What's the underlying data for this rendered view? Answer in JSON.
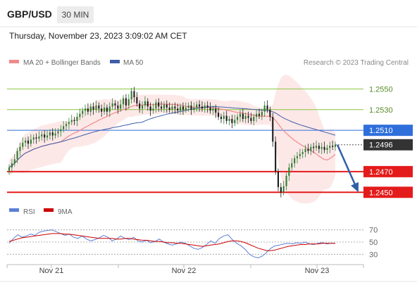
{
  "header": {
    "symbol": "GBP/USD",
    "timeframe": "30 MIN",
    "timestamp": "Thursday, November 23, 2023 3:09:02 AM CET"
  },
  "legend": {
    "ma20_label": "MA 20 + Bollinger Bands",
    "ma50_label": "MA 50",
    "credit": "Research © 2023 Trading Central",
    "rsi_label": "RSI",
    "ma9_label": "9MA"
  },
  "colors": {
    "ma20": "#f08a8a",
    "ma50": "#3d5ea8",
    "band_fill": "#fde4e4",
    "candle_up": "#2e7d32",
    "candle_down": "#1b1b1b",
    "resistance": "#8cc63f",
    "pivot": "#2f6fdb",
    "support": "#e41b1b",
    "current": "#333333",
    "forecast_arrow": "#2f5fa8",
    "rsi": "#5b7fd6",
    "rsi_ma": "#cc0000"
  },
  "chart_data": [
    {
      "type": "candlestick",
      "title": "GBP/USD",
      "timeframe": "30 MIN",
      "ylim": [
        1.2442,
        1.2568
      ],
      "x_ticks": [
        "Nov 21",
        "Nov 22",
        "Nov 23"
      ],
      "levels": [
        {
          "label": "1.2550",
          "value": 1.255,
          "kind": "resistance"
        },
        {
          "label": "1.2530",
          "value": 1.253,
          "kind": "resistance"
        },
        {
          "label": "1.2510",
          "value": 1.251,
          "kind": "pivot"
        },
        {
          "label": "1.2496",
          "value": 1.2496,
          "kind": "current"
        },
        {
          "label": "1.2470",
          "value": 1.247,
          "kind": "support"
        },
        {
          "label": "1.2450",
          "value": 1.245,
          "kind": "support"
        }
      ],
      "forecast": {
        "direction": "down",
        "target": 1.245
      },
      "close_series": [
        1.2474,
        1.2478,
        1.2482,
        1.249,
        1.2494,
        1.2498,
        1.25,
        1.2497,
        1.2501,
        1.2503,
        1.2502,
        1.2504,
        1.2506,
        1.2503,
        1.2505,
        1.2508,
        1.2505,
        1.2507,
        1.2509,
        1.2511,
        1.2514,
        1.2516,
        1.2518,
        1.252,
        1.2519,
        1.2523,
        1.2526,
        1.2529,
        1.2531,
        1.2528,
        1.2533,
        1.253,
        1.2534,
        1.2531,
        1.2528,
        1.2532,
        1.2528,
        1.2533,
        1.2536,
        1.2534,
        1.2531,
        1.2535,
        1.2541,
        1.2534,
        1.254,
        1.2548,
        1.2542,
        1.2536,
        1.2531,
        1.2534,
        1.2538,
        1.2533,
        1.2529,
        1.2531,
        1.2537,
        1.2533,
        1.2531,
        1.2535,
        1.2532,
        1.253,
        1.2533,
        1.2531,
        1.2529,
        1.2533,
        1.253,
        1.2532,
        1.2534,
        1.253,
        1.2532,
        1.2535,
        1.2533,
        1.2531,
        1.2534,
        1.2532,
        1.2529,
        1.2531,
        1.2527,
        1.2523,
        1.2521,
        1.2524,
        1.2519,
        1.2521,
        1.2517,
        1.252,
        1.2523,
        1.2526,
        1.2521,
        1.2524,
        1.2522,
        1.2519,
        1.2523,
        1.2526,
        1.2524,
        1.2528,
        1.2534,
        1.253,
        1.2523,
        1.2499,
        1.247,
        1.2455,
        1.245,
        1.2456,
        1.2466,
        1.2474,
        1.2478,
        1.2483,
        1.2485,
        1.2487,
        1.2489,
        1.2492,
        1.249,
        1.2494,
        1.2493,
        1.2495,
        1.2492,
        1.2494,
        1.2491,
        1.2493,
        1.2495,
        1.2494,
        1.2496
      ]
    },
    {
      "type": "line",
      "title": "RSI",
      "ylim": [
        20,
        80
      ],
      "y_ticks": [
        70,
        50,
        30
      ],
      "series": [
        {
          "name": "RSI",
          "values": [
            48,
            56,
            62,
            58,
            60,
            63,
            61,
            66,
            68,
            69,
            70,
            67,
            64,
            61,
            63,
            58,
            56,
            60,
            55,
            52,
            54,
            57,
            61,
            58,
            52,
            55,
            60,
            56,
            54,
            58,
            52,
            50,
            53,
            49,
            51,
            55,
            50,
            47,
            45,
            47,
            50,
            48,
            44,
            40,
            38,
            41,
            46,
            52,
            48,
            56,
            60,
            62,
            54,
            48,
            44,
            38,
            30,
            26,
            24,
            27,
            33,
            40,
            44,
            45,
            47,
            48,
            47,
            49,
            48,
            50,
            47,
            46,
            48,
            49,
            47,
            48,
            48
          ]
        },
        {
          "name": "9MA",
          "values": [
            51,
            53,
            55,
            57,
            58,
            59,
            60,
            61,
            62,
            63,
            64,
            64,
            64,
            63,
            63,
            62,
            61,
            60,
            59,
            58,
            57,
            56,
            56,
            56,
            56,
            55,
            55,
            56,
            56,
            55,
            54,
            53,
            53,
            52,
            51,
            51,
            50,
            49,
            49,
            48,
            48,
            47,
            46,
            45,
            44,
            43,
            44,
            45,
            46,
            47,
            49,
            51,
            52,
            52,
            51,
            49,
            46,
            43,
            40,
            38,
            36,
            36,
            37,
            39,
            41,
            43,
            44,
            45,
            46,
            46,
            47,
            47,
            47,
            48,
            48,
            48,
            48
          ]
        }
      ]
    }
  ]
}
